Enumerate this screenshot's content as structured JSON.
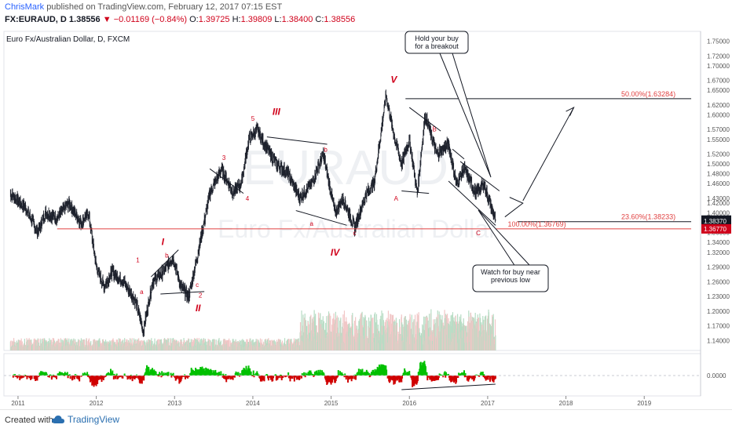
{
  "header": {
    "author": "ChrisMark",
    "published_text": "published on TradingView.com, February 12, 2017 07:15 EST",
    "symbol": "FX:EURAUD, D",
    "last": "1.38556",
    "change": "−0.01169 (−0.84%)",
    "open_label": "O:",
    "open": "1.39725",
    "high_label": "H:",
    "high": "1.39809",
    "low_label": "L:",
    "low": "1.38400",
    "close_label": "C:",
    "close": "1.38556"
  },
  "chart_title": "Euro Fx/Australian Dollar, D, FXCM",
  "watermark": {
    "symbol": "EURAUD",
    "name": "Euro Fx/Australian Dollar"
  },
  "footer": {
    "created_with": "Created with",
    "brand": "TradingView"
  },
  "chart_data": {
    "type": "line",
    "x_axis": [
      "2011",
      "2012",
      "2013",
      "2014",
      "2015",
      "2016",
      "2017",
      "2018",
      "2019"
    ],
    "y_ticks": [
      "1.75000",
      "1.72000",
      "1.70000",
      "1.67000",
      "1.65000",
      "1.62000",
      "1.60000",
      "1.57000",
      "1.55000",
      "1.52000",
      "1.50000",
      "1.48000",
      "1.46000",
      "1.43000",
      "1.42000",
      "1.40000",
      "1.38000",
      "1.36000",
      "1.34000",
      "1.32000",
      "1.29000",
      "1.26000",
      "1.23000",
      "1.20000",
      "1.17000",
      "1.14000"
    ],
    "ylim": [
      1.12,
      1.77
    ],
    "series": [
      {
        "values": [
          [
            2010.9,
            1.44
          ],
          [
            2011.1,
            1.41
          ],
          [
            2011.25,
            1.36
          ],
          [
            2011.35,
            1.4
          ],
          [
            2011.5,
            1.39
          ],
          [
            2011.65,
            1.42
          ],
          [
            2011.8,
            1.38
          ],
          [
            2011.9,
            1.4
          ],
          [
            2012.0,
            1.29
          ],
          [
            2012.1,
            1.25
          ],
          [
            2012.2,
            1.28
          ],
          [
            2012.35,
            1.26
          ],
          [
            2012.5,
            1.22
          ],
          [
            2012.6,
            1.16
          ],
          [
            2012.72,
            1.26
          ],
          [
            2012.85,
            1.28
          ],
          [
            2012.98,
            1.31
          ],
          [
            2013.08,
            1.25
          ],
          [
            2013.18,
            1.23
          ],
          [
            2013.3,
            1.32
          ],
          [
            2013.45,
            1.44
          ],
          [
            2013.6,
            1.49
          ],
          [
            2013.75,
            1.44
          ],
          [
            2013.85,
            1.46
          ],
          [
            2013.95,
            1.55
          ],
          [
            2014.05,
            1.57
          ],
          [
            2014.15,
            1.54
          ],
          [
            2014.3,
            1.5
          ],
          [
            2014.45,
            1.48
          ],
          [
            2014.6,
            1.43
          ],
          [
            2014.75,
            1.46
          ],
          [
            2014.9,
            1.52
          ],
          [
            2015.05,
            1.4
          ],
          [
            2015.15,
            1.43
          ],
          [
            2015.3,
            1.37
          ],
          [
            2015.45,
            1.44
          ],
          [
            2015.55,
            1.46
          ],
          [
            2015.65,
            1.58
          ],
          [
            2015.7,
            1.64
          ],
          [
            2015.8,
            1.56
          ],
          [
            2015.9,
            1.5
          ],
          [
            2016.0,
            1.55
          ],
          [
            2016.1,
            1.44
          ],
          [
            2016.2,
            1.6
          ],
          [
            2016.35,
            1.52
          ],
          [
            2016.5,
            1.54
          ],
          [
            2016.6,
            1.46
          ],
          [
            2016.7,
            1.49
          ],
          [
            2016.85,
            1.44
          ],
          [
            2016.95,
            1.46
          ],
          [
            2017.05,
            1.41
          ],
          [
            2017.1,
            1.38556
          ]
        ]
      }
    ],
    "price_tags": [
      {
        "value": "1.38556",
        "color": "#131722"
      },
      {
        "value": "1.38370",
        "color": "#131722"
      },
      {
        "value": "1.36770",
        "color": "#d0021b"
      }
    ],
    "fib_levels": [
      {
        "label": "50.00%(1.63284)",
        "value": 1.63284
      },
      {
        "label": "23.60%(1.38233)",
        "value": 1.38233
      },
      {
        "label": "100.00%(1.36769)",
        "value": 1.36769
      }
    ],
    "wave_labels": [
      {
        "text": "I",
        "color": "#d0021b"
      },
      {
        "text": "II",
        "color": "#d0021b"
      },
      {
        "text": "III",
        "color": "#d0021b"
      },
      {
        "text": "IV",
        "color": "#d0021b"
      },
      {
        "text": "V",
        "color": "#d0021b"
      },
      {
        "text": "1"
      },
      {
        "text": "2"
      },
      {
        "text": "3"
      },
      {
        "text": "4"
      },
      {
        "text": "5"
      },
      {
        "text": "a"
      },
      {
        "text": "b"
      },
      {
        "text": "c"
      },
      {
        "text": "a"
      },
      {
        "text": "b"
      },
      {
        "text": "c"
      },
      {
        "text": "A"
      },
      {
        "text": "B"
      },
      {
        "text": "C"
      }
    ],
    "callouts": [
      {
        "text": "Hold your buy\nfor a breakout"
      },
      {
        "text": "Watch for buy near\nprevious low"
      }
    ],
    "oscillator_tick": "0.0000",
    "colors": {
      "up": "#26a69a",
      "down": "#d0021b",
      "osc_up": "#00c000",
      "osc_down": "#d00000",
      "line": "#131722",
      "fib": "#e04040"
    }
  }
}
